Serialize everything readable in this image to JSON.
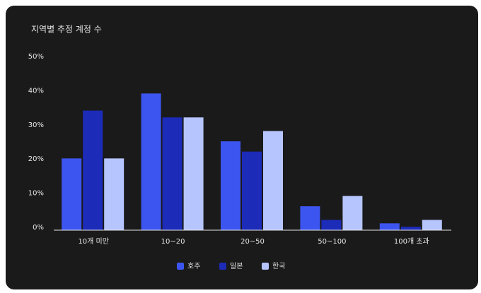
{
  "chart_data": {
    "type": "bar",
    "title": "지역별 추정 계정 수",
    "categories": [
      "10개 미만",
      "10~20",
      "20~50",
      "50~100",
      "100개 초과"
    ],
    "series": [
      {
        "name": "호주",
        "color": "#3d55f0",
        "values": [
          21,
          40,
          26,
          7,
          2
        ]
      },
      {
        "name": "일본",
        "color": "#1c2bb8",
        "values": [
          35,
          33,
          23,
          3,
          1
        ]
      },
      {
        "name": "한국",
        "color": "#b7c5ff",
        "values": [
          21,
          33,
          29,
          10,
          3
        ]
      }
    ],
    "ylim": [
      0,
      50
    ],
    "yticks": [
      {
        "value": 0,
        "label": "0%"
      },
      {
        "value": 10,
        "label": "10%"
      },
      {
        "value": 20,
        "label": "20%"
      },
      {
        "value": 30,
        "label": "30%"
      },
      {
        "value": 40,
        "label": "40%"
      },
      {
        "value": 50,
        "label": "50%"
      }
    ],
    "grid": false,
    "legend": "bottom"
  }
}
